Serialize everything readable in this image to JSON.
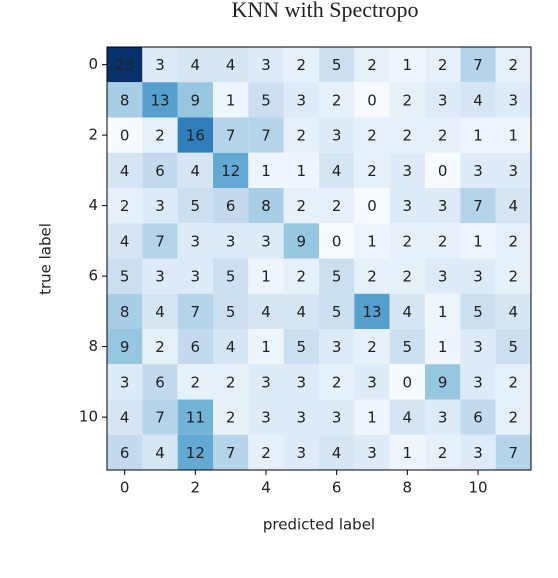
{
  "chart_data": {
    "type": "heatmap",
    "title": "KNN with Spectropo",
    "xlabel": "predicted label",
    "ylabel": "true label",
    "matrix": [
      [
        23,
        3,
        4,
        4,
        3,
        2,
        5,
        2,
        1,
        2,
        7,
        2
      ],
      [
        8,
        13,
        9,
        1,
        5,
        3,
        2,
        0,
        2,
        3,
        4,
        3
      ],
      [
        0,
        2,
        16,
        7,
        7,
        2,
        3,
        2,
        2,
        2,
        1,
        1
      ],
      [
        4,
        6,
        4,
        12,
        1,
        1,
        4,
        2,
        3,
        0,
        3,
        3
      ],
      [
        2,
        3,
        5,
        6,
        8,
        2,
        2,
        0,
        3,
        3,
        7,
        4
      ],
      [
        4,
        7,
        3,
        3,
        3,
        9,
        0,
        1,
        2,
        2,
        1,
        2
      ],
      [
        5,
        3,
        3,
        5,
        1,
        2,
        5,
        2,
        2,
        3,
        3,
        2
      ],
      [
        8,
        4,
        7,
        5,
        4,
        4,
        5,
        13,
        4,
        1,
        5,
        4
      ],
      [
        9,
        2,
        6,
        4,
        1,
        5,
        3,
        2,
        5,
        1,
        3,
        5
      ],
      [
        3,
        6,
        2,
        2,
        3,
        3,
        2,
        3,
        0,
        9,
        3,
        2
      ],
      [
        4,
        7,
        11,
        2,
        3,
        3,
        3,
        1,
        4,
        3,
        6,
        2
      ],
      [
        6,
        4,
        12,
        7,
        2,
        3,
        4,
        3,
        1,
        2,
        3,
        7
      ]
    ],
    "colormap": "Blues",
    "xlim": [
      -0.5,
      11.5
    ],
    "xticks": [
      0,
      2,
      4,
      6,
      8,
      10
    ],
    "ylim": [
      -0.5,
      11.5
    ],
    "yticks": [
      0,
      2,
      4,
      6,
      8,
      10
    ]
  }
}
